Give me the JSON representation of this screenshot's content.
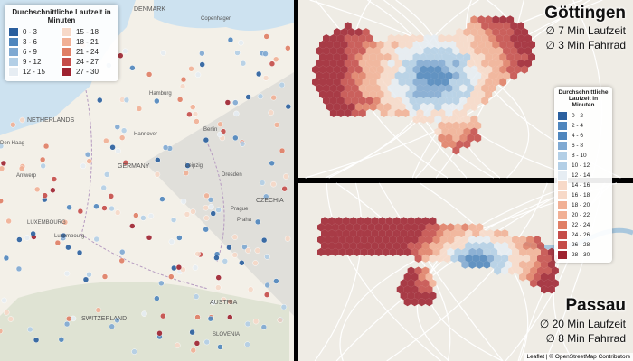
{
  "left_map": {
    "legend": {
      "title": "Durchschnittliche Laufzeit in Minuten",
      "items": [
        "0 - 3",
        "3 - 6",
        "6 - 9",
        "9 - 12",
        "12 - 15",
        "15 - 18",
        "18 - 21",
        "21 - 24",
        "24 - 27",
        "27 - 30"
      ]
    },
    "labels": [
      "DENMARK",
      "Copenhagen",
      "NETHERLANDS",
      "Hamburg",
      "Berlin",
      "GERMANY",
      "Den Haag",
      "Antwerp",
      "Hannover",
      "Prague",
      "CZECHIA",
      "LUXEMBOURG",
      "Luxembourg",
      "AUSTRIA",
      "SWITZERLAND",
      "SLOVENIA",
      "Leipzig",
      "Dresden",
      "Praha"
    ]
  },
  "goettingen": {
    "title": "Göttingen",
    "walk": "∅ 7 Min Laufzeit",
    "bike": "∅ 3 Min Fahrrad"
  },
  "passau": {
    "title": "Passau",
    "walk": "∅ 20 Min Laufzeit",
    "bike": "∅ 8 Min Fahrrad"
  },
  "legend": {
    "title": "Durchschnittliche Laufzeit in Minuten",
    "items": [
      "0 - 2",
      "2 - 4",
      "4 - 6",
      "6 - 8",
      "8 - 10",
      "10 - 12",
      "12 - 14",
      "14 - 16",
      "16 - 18",
      "18 - 20",
      "20 - 22",
      "22 - 24",
      "24 - 26",
      "26 - 28",
      "28 - 30"
    ]
  },
  "attribution": "Leaflet | © OpenStreetMap Contributors"
}
